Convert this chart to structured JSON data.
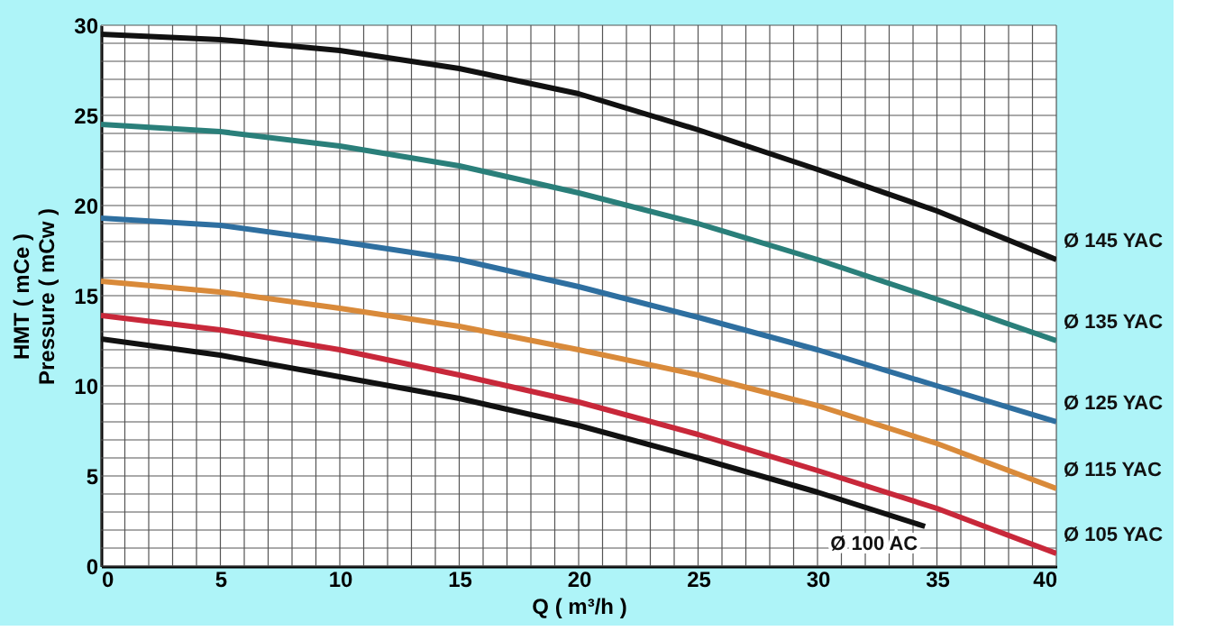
{
  "chart_data": {
    "type": "line",
    "xlabel": "Q ( m³/h )",
    "ylabel": "HMT ( mCe )\nPressure ( mCw )",
    "xlim": [
      0,
      40
    ],
    "ylim": [
      0,
      30
    ],
    "xticks": [
      0,
      5,
      10,
      15,
      20,
      25,
      30,
      35,
      40
    ],
    "yticks": [
      0,
      5,
      10,
      15,
      20,
      25,
      30
    ],
    "grid": true,
    "legend": false,
    "marker": "none",
    "line_style": "solid",
    "series": [
      {
        "name": "Ø 145 YAC",
        "color": "#111111",
        "x": [
          0,
          5,
          10,
          15,
          20,
          25,
          30,
          35,
          40
        ],
        "values": [
          29.5,
          29.2,
          28.6,
          27.6,
          26.2,
          24.2,
          22,
          19.7,
          17
        ]
      },
      {
        "name": "Ø 135 YAC",
        "color": "#2a7f7a",
        "x": [
          0,
          5,
          10,
          15,
          20,
          25,
          30,
          35,
          40
        ],
        "values": [
          24.5,
          24.1,
          23.3,
          22.2,
          20.7,
          19,
          17,
          14.8,
          12.5
        ]
      },
      {
        "name": "Ø 125 YAC",
        "color": "#2e6fa0",
        "x": [
          0,
          5,
          10,
          15,
          20,
          25,
          30,
          35,
          40
        ],
        "values": [
          19.3,
          18.9,
          18,
          17,
          15.5,
          13.8,
          12,
          10,
          8
        ]
      },
      {
        "name": "Ø 115 YAC",
        "color": "#d98a3a",
        "x": [
          0,
          5,
          10,
          15,
          20,
          25,
          30,
          35,
          40
        ],
        "values": [
          15.8,
          15.2,
          14.3,
          13.3,
          12,
          10.6,
          8.9,
          6.8,
          4.3
        ]
      },
      {
        "name": "Ø 105 YAC",
        "color": "#c8283a",
        "x": [
          0,
          5,
          10,
          15,
          20,
          25,
          30,
          35,
          40
        ],
        "values": [
          13.9,
          13.1,
          12,
          10.6,
          9.1,
          7.3,
          5.3,
          3.2,
          0.7
        ]
      },
      {
        "name": "Ø 100 AC",
        "color": "#111111",
        "x": [
          0,
          5,
          10,
          15,
          20,
          25,
          30,
          34.5
        ],
        "values": [
          12.6,
          11.7,
          10.5,
          9.3,
          7.8,
          6,
          4.1,
          2.2
        ]
      }
    ]
  }
}
